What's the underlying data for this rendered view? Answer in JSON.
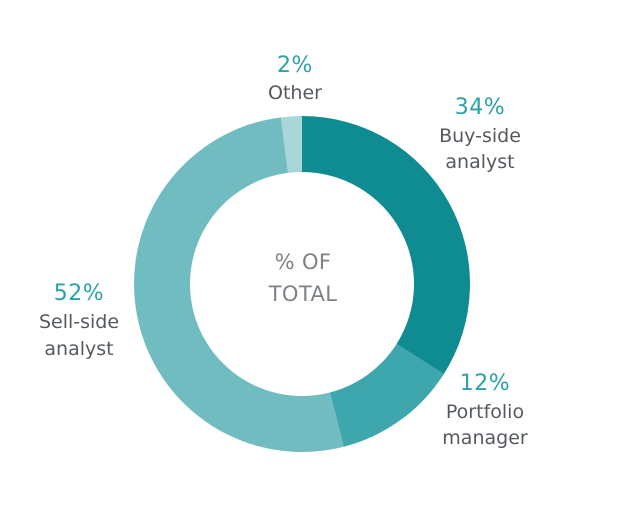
{
  "chart_data": {
    "type": "pie",
    "donut": true,
    "center_label": [
      "% OF",
      "TOTAL"
    ],
    "slices": [
      {
        "label": "Buy-side analyst",
        "label_lines": [
          "Buy-side",
          "analyst"
        ],
        "value": 34,
        "value_label": "34%",
        "color": "#0f8b92"
      },
      {
        "label": "Portfolio manager",
        "label_lines": [
          "Portfolio",
          "manager"
        ],
        "value": 12,
        "value_label": "12%",
        "color": "#3ea6ad"
      },
      {
        "label": "Sell-side analyst",
        "label_lines": [
          "Sell-side",
          "analyst"
        ],
        "value": 52,
        "value_label": "52%",
        "color": "#71bcc1"
      },
      {
        "label": "Other",
        "label_lines": [
          "Other"
        ],
        "value": 2,
        "value_label": "2%",
        "color": "#a9d6d9"
      }
    ],
    "legend": "none"
  }
}
